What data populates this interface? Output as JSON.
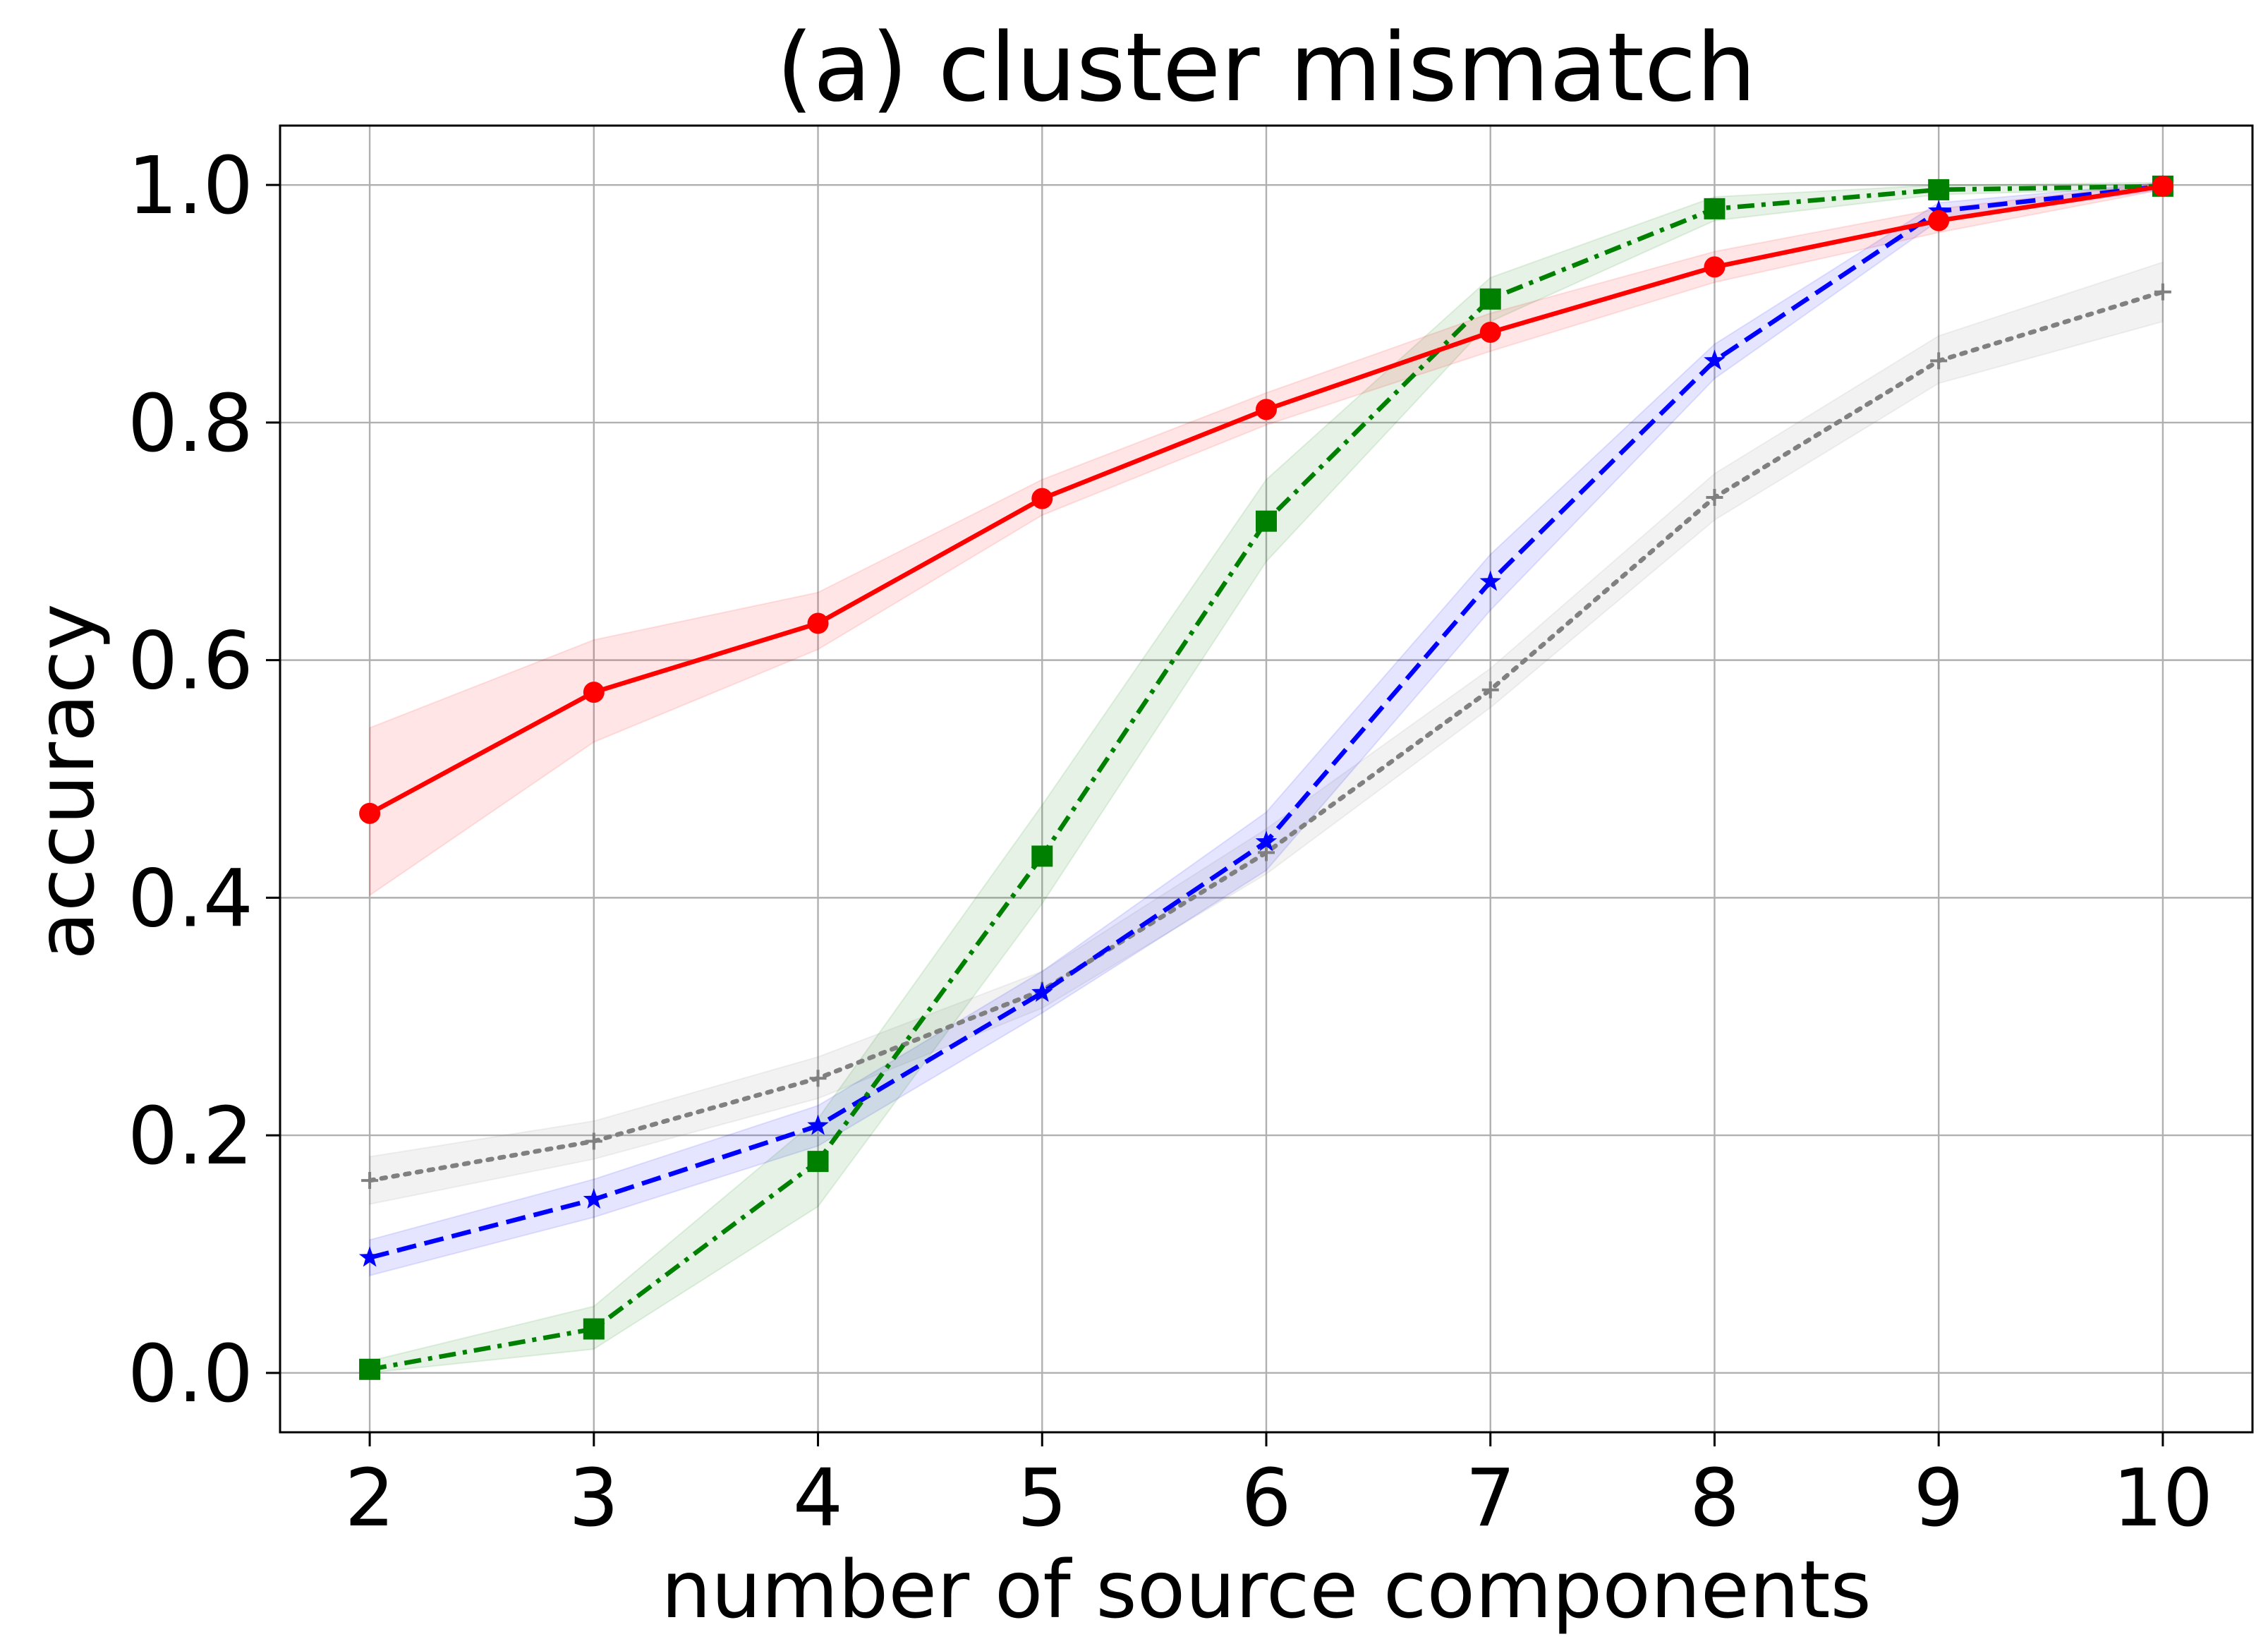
{
  "chart_data": {
    "type": "line",
    "title": "(a) cluster mismatch",
    "xlabel": "number of source components",
    "ylabel": "accuracy",
    "x": [
      2,
      3,
      4,
      5,
      6,
      7,
      8,
      9,
      10
    ],
    "xlim": [
      1.6,
      10.4
    ],
    "ylim": [
      -0.05,
      1.05
    ],
    "xticks": [
      2,
      3,
      4,
      5,
      6,
      7,
      8,
      9,
      10
    ],
    "yticks": [
      0.0,
      0.2,
      0.4,
      0.6,
      0.8,
      1.0
    ],
    "ytick_labels": [
      "0.0",
      "0.2",
      "0.4",
      "0.6",
      "0.8",
      "1.0"
    ],
    "grid": true,
    "legend": "none",
    "series": [
      {
        "color": "#808080",
        "linestyle": "dotted",
        "marker": "plus",
        "values": [
          0.162,
          0.195,
          0.248,
          0.322,
          0.438,
          0.575,
          0.737,
          0.852,
          0.91
        ],
        "lower": [
          0.142,
          0.18,
          0.231,
          0.307,
          0.42,
          0.56,
          0.718,
          0.833,
          0.885
        ],
        "upper": [
          0.182,
          0.212,
          0.266,
          0.338,
          0.458,
          0.593,
          0.757,
          0.873,
          0.935
        ]
      },
      {
        "color": "#0000ff",
        "linestyle": "dashed",
        "marker": "star",
        "values": [
          0.097,
          0.146,
          0.208,
          0.32,
          0.447,
          0.666,
          0.852,
          0.978,
          0.999
        ],
        "lower": [
          0.082,
          0.131,
          0.191,
          0.303,
          0.423,
          0.642,
          0.837,
          0.97,
          0.996
        ],
        "upper": [
          0.112,
          0.163,
          0.225,
          0.338,
          0.472,
          0.689,
          0.866,
          0.985,
          1.002
        ]
      },
      {
        "color": "#008000",
        "linestyle": "dashdot",
        "marker": "square",
        "values": [
          0.003,
          0.037,
          0.178,
          0.435,
          0.717,
          0.904,
          0.98,
          0.996,
          0.999
        ],
        "lower": [
          0.0,
          0.02,
          0.14,
          0.395,
          0.683,
          0.885,
          0.97,
          0.992,
          0.997
        ],
        "upper": [
          0.01,
          0.056,
          0.214,
          0.478,
          0.752,
          0.922,
          0.99,
          1.0,
          1.002
        ]
      },
      {
        "color": "#ff0000",
        "linestyle": "solid",
        "marker": "circle",
        "values": [
          0.471,
          0.573,
          0.631,
          0.736,
          0.811,
          0.876,
          0.931,
          0.97,
          0.999
        ],
        "lower": [
          0.402,
          0.531,
          0.609,
          0.722,
          0.798,
          0.86,
          0.918,
          0.96,
          0.996
        ],
        "upper": [
          0.543,
          0.617,
          0.657,
          0.752,
          0.825,
          0.892,
          0.944,
          0.98,
          1.002
        ]
      }
    ]
  }
}
